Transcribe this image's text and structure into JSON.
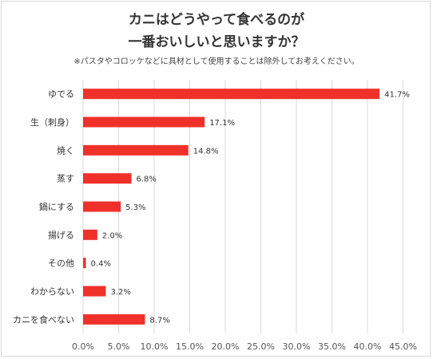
{
  "chart_data": {
    "type": "bar",
    "orientation": "horizontal",
    "title_line1": "カニはどうやって食べるのが",
    "title_line2": "一番おいしいと思いますか？",
    "note": "※パスタやコロッケなどに具材として使用することは除外してお考えください。",
    "categories": [
      "ゆでる",
      "生（刺身）",
      "焼く",
      "蒸す",
      "鍋にする",
      "揚げる",
      "その他",
      "わからない",
      "カニを食べない"
    ],
    "values": [
      41.7,
      17.1,
      14.8,
      6.8,
      5.3,
      2.0,
      0.4,
      3.2,
      8.7
    ],
    "value_labels": [
      "41.7%",
      "17.1%",
      "14.8%",
      "6.8%",
      "5.3%",
      "2.0%",
      "0.4%",
      "3.2%",
      "8.7%"
    ],
    "xlim": [
      0,
      45
    ],
    "xticks": [
      "0.0%",
      "5.0%",
      "10.0%",
      "15.0%",
      "20.0%",
      "25.0%",
      "30.0%",
      "35.0%",
      "40.0%",
      "45.0%"
    ],
    "xtick_values": [
      0,
      5,
      10,
      15,
      20,
      25,
      30,
      35,
      40,
      45
    ],
    "grid": true,
    "colors": {
      "bar": "#f0312a",
      "grid": "#d9d9d9"
    }
  }
}
